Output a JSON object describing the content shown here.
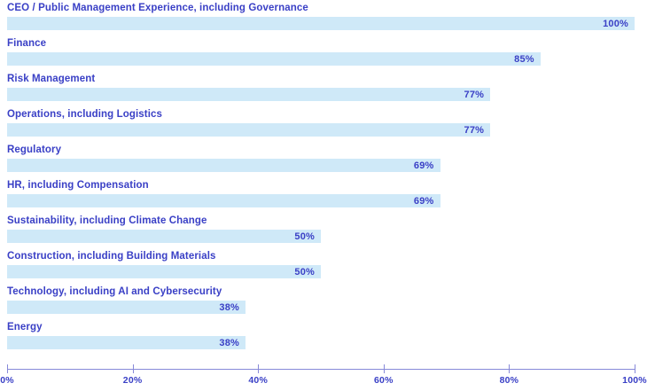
{
  "chart_data": {
    "type": "bar",
    "orientation": "horizontal",
    "title": "",
    "xlabel": "",
    "ylabel": "",
    "categories": [
      "CEO / Public Management Experience, including Governance",
      "Finance",
      "Risk Management",
      "Operations, including Logistics",
      "Regulatory",
      "HR, including Compensation",
      "Sustainability, including Climate Change",
      "Construction, including Building Materials",
      "Technology, including AI and Cybersecurity",
      "Energy"
    ],
    "values": [
      100,
      85,
      77,
      77,
      69,
      69,
      50,
      50,
      38,
      38
    ],
    "value_labels": [
      "100%",
      "85%",
      "77%",
      "77%",
      "69%",
      "69%",
      "50%",
      "50%",
      "38%",
      "38%"
    ],
    "xlim": [
      0,
      100
    ],
    "x_tick_values": [
      0,
      20,
      40,
      60,
      80,
      100
    ],
    "x_ticks": [
      "0%",
      "20%",
      "40%",
      "60%",
      "80%",
      "100%"
    ],
    "grid": "off",
    "legend": "none",
    "colors": {
      "bar_fill": "#cfe9f8",
      "label_text": "#3a40c6",
      "axis_line": "#8789d9"
    }
  }
}
